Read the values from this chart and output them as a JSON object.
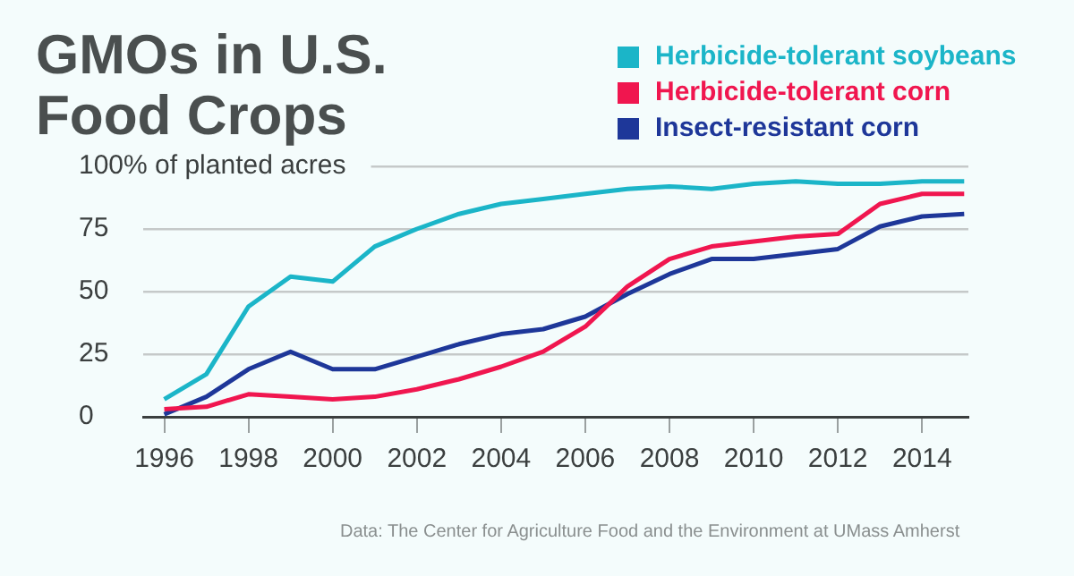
{
  "chart_data": {
    "type": "line",
    "title": "GMOs in U.S. Food Crops",
    "x": [
      1996,
      1997,
      1998,
      1999,
      2000,
      2001,
      2002,
      2003,
      2004,
      2005,
      2006,
      2007,
      2008,
      2009,
      2010,
      2011,
      2012,
      2013,
      2014,
      2015
    ],
    "series": [
      {
        "name": "Herbicide-tolerant soybeans",
        "color": "#1bb5c8",
        "values": [
          7,
          17,
          44,
          56,
          54,
          68,
          75,
          81,
          85,
          87,
          89,
          91,
          92,
          91,
          93,
          94,
          93,
          93,
          94,
          94
        ]
      },
      {
        "name": "Herbicide-tolerant corn",
        "color": "#f0164f",
        "values": [
          3,
          4,
          9,
          8,
          7,
          8,
          11,
          15,
          20,
          26,
          36,
          52,
          63,
          68,
          70,
          72,
          73,
          85,
          89,
          89
        ]
      },
      {
        "name": "Insect-resistant corn",
        "color": "#1e3799",
        "values": [
          1,
          8,
          19,
          26,
          19,
          19,
          24,
          29,
          33,
          35,
          40,
          49,
          57,
          63,
          63,
          65,
          67,
          76,
          80,
          81
        ]
      }
    ],
    "xlim": [
      1995.5,
      2015.1
    ],
    "xticks": [
      1996,
      1998,
      2000,
      2002,
      2004,
      2006,
      2008,
      2010,
      2012,
      2014
    ],
    "ylim": [
      0,
      100
    ],
    "yticks": [
      0,
      25,
      50,
      75,
      {
        "value": 100,
        "label": "100% of planted acres"
      }
    ],
    "grid": "y",
    "legend": "top right",
    "marker": "none",
    "line_style": "solid",
    "annotations": [
      "Data: The Center for Agriculture Food and the Environment at UMass Amherst"
    ]
  }
}
